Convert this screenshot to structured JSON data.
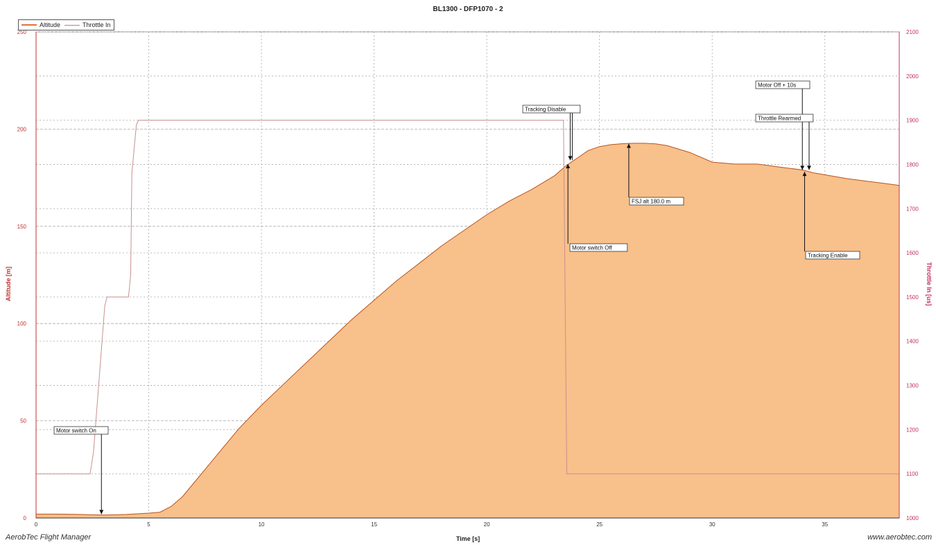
{
  "chart_data": {
    "type": "area",
    "title": "BL1300 - DFP1070 - 2",
    "xlabel": "Time [s]",
    "ylabel": "Altitude [m]",
    "y2label": "Throttle In [us]",
    "xlim": [
      0,
      38.3
    ],
    "ylim": [
      0,
      250
    ],
    "y2lim": [
      1000,
      2100
    ],
    "xticks": [
      0,
      5,
      10,
      15,
      20,
      25,
      30,
      35
    ],
    "yticks": [
      0,
      50,
      100,
      150,
      200,
      250
    ],
    "y2ticks": [
      1000,
      1100,
      1200,
      1300,
      1400,
      1500,
      1600,
      1700,
      1800,
      1900,
      2000,
      2100
    ],
    "grid": true,
    "legend_position": "top-left",
    "colors": {
      "altitude_fill": "#f8c08a",
      "altitude_line": "#b8531f",
      "throttle_line": "#c89090",
      "grid": "#aaaaaa"
    },
    "series": [
      {
        "name": "Altitude",
        "axis": "left",
        "x": [
          0,
          1,
          2,
          3,
          4,
          5,
          5.5,
          6,
          6.5,
          7,
          7.5,
          8,
          9,
          10,
          11,
          12,
          13,
          14,
          15,
          16,
          17,
          18,
          19,
          20,
          21,
          22,
          23,
          23.5,
          24,
          24.5,
          25,
          25.5,
          26,
          26.5,
          27,
          27.5,
          28,
          29,
          30,
          31,
          32,
          33,
          34,
          34.5,
          35,
          36,
          37,
          38,
          38.3
        ],
        "values": [
          2,
          2,
          1.8,
          1.5,
          1.8,
          2.5,
          3,
          6,
          11,
          18,
          25,
          32,
          46,
          58,
          69,
          80,
          91,
          102,
          112,
          122,
          131,
          140,
          148,
          156,
          163,
          169,
          176,
          181,
          185,
          189,
          191,
          192,
          192.5,
          192.7,
          192.7,
          192.4,
          191.5,
          188,
          183,
          182,
          182,
          180.5,
          179,
          177.5,
          176.5,
          174.5,
          173,
          171.5,
          171
        ]
      },
      {
        "name": "Throttle In",
        "axis": "right",
        "x": [
          0,
          2.4,
          2.55,
          3.05,
          3.15,
          4.1,
          4.2,
          4.25,
          4.45,
          4.55,
          23.4,
          23.55,
          38.3
        ],
        "values": [
          1100,
          1100,
          1150,
          1480,
          1500,
          1500,
          1550,
          1780,
          1890,
          1900,
          1900,
          1100,
          1100
        ]
      }
    ],
    "annotations": [
      {
        "text": "Motor switch On",
        "x": 2.9,
        "y": 2
      },
      {
        "text": "Tracking Disable",
        "x": 23.7,
        "y": 184
      },
      {
        "text": "Motor switch Off",
        "x": 23.6,
        "y": 182
      },
      {
        "text": "FSJ alt 180.0 m",
        "x": 26.3,
        "y": 192.5
      },
      {
        "text": "Motor Off + 10s",
        "x": 34,
        "y": 179
      },
      {
        "text": "Throttle Rearmed",
        "x": 34.3,
        "y": 179
      },
      {
        "text": "Tracking Enable",
        "x": 34.1,
        "y": 178
      }
    ]
  },
  "footer": {
    "app_name": "AerobTec Flight Manager",
    "website": "www.aerobtec.com"
  }
}
